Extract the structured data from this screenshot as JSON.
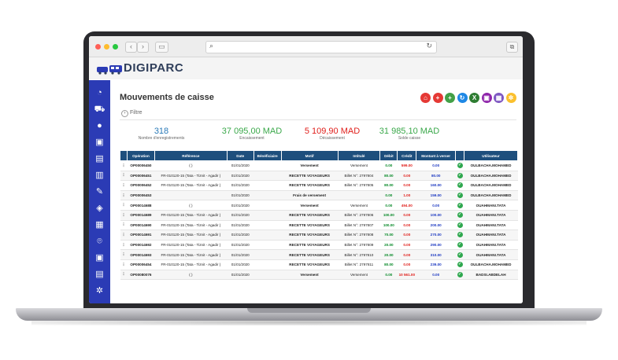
{
  "brand": {
    "name": "DIGIPARC"
  },
  "page": {
    "title": "Mouvements de caisse",
    "filter_label": "Filtre"
  },
  "stats": [
    {
      "value": "318",
      "label": "Nombre d'enregistrements",
      "color": "#2a7ab8"
    },
    {
      "value": "37 095,00 MAD",
      "label": "Encaissement",
      "color": "#3aa84a"
    },
    {
      "value": "5 109,90 MAD",
      "label": "Décaissement",
      "color": "#e0201c"
    },
    {
      "value": "31 985,10 MAD",
      "label": "Solde caisse",
      "color": "#3aa84a"
    }
  ],
  "toolbar": [
    {
      "icon": "pdf-icon",
      "color": "#e53935"
    },
    {
      "icon": "add-red-icon",
      "color": "#e53935"
    },
    {
      "icon": "add-green-icon",
      "color": "#43a047"
    },
    {
      "icon": "refresh-icon",
      "color": "#1e88e5"
    },
    {
      "icon": "excel-icon",
      "color": "#2e7d32"
    },
    {
      "icon": "print-icon",
      "color": "#8e24aa"
    },
    {
      "icon": "grid-icon",
      "color": "#7e57c2"
    },
    {
      "icon": "settings-icon",
      "color": "#fbc02d"
    }
  ],
  "table": {
    "columns": [
      "",
      "Opération",
      "Référence",
      "Date",
      "Bénéficiaire",
      "Motif",
      "Intitulé",
      "Débit",
      "Crédit",
      "Montant à verser",
      "",
      "Utilisateur"
    ],
    "rows": [
      [
        "OP00006450",
        "( )",
        "01/01/2020",
        "",
        "Versement",
        "Versement",
        "0.00",
        "599.00",
        "0.00",
        "OULBACHA.MOHAMED"
      ],
      [
        "OP00006451",
        "FR-010120-15 (Tata - Tiznit - Agadir )",
        "01/01/2020",
        "",
        "RECETTE VOYAGEURS",
        "Billet N°: 2797804",
        "80.00",
        "0.00",
        "80.00",
        "OULBACHA.MOHAMED"
      ],
      [
        "OP00006452",
        "FR-010120-15 (Tata - Tiznit - Agadir )",
        "01/01/2020",
        "",
        "RECETTE VOYAGEURS",
        "Billet N°: 2797805",
        "80.00",
        "0.00",
        "160.00",
        "OULBACHA.MOHAMED"
      ],
      [
        "OP00006453",
        "",
        "01/01/2020",
        "",
        "Frais de versement",
        "",
        "0.00",
        "1.00",
        "159.00",
        "OULBACHA.MOHAMED"
      ],
      [
        "OP00014688",
        "( )",
        "01/01/2020",
        "",
        "Versement",
        "Versement",
        "0.00",
        "494.00",
        "0.00",
        "OUAHMANI.TATA"
      ],
      [
        "OP00014689",
        "FR-010120-15 (Tata - Tiznit - Agadir )",
        "01/01/2020",
        "",
        "RECETTE VOYAGEURS",
        "Billet N°: 2797806",
        "100.00",
        "0.00",
        "100.00",
        "OUAHMANI.TATA"
      ],
      [
        "OP00014690",
        "FR-010120-15 (Tata - Tiznit - Agadir )",
        "01/01/2020",
        "",
        "RECETTE VOYAGEURS",
        "Billet N°: 2797807",
        "100.00",
        "0.00",
        "200.00",
        "OUAHMANI.TATA"
      ],
      [
        "OP00014691",
        "FR-010120-15 (Tata - Tiznit - Agadir )",
        "01/01/2020",
        "",
        "RECETTE VOYAGEURS",
        "Billet N°: 2797808",
        "70.00",
        "0.00",
        "270.00",
        "OUAHMANI.TATA"
      ],
      [
        "OP00014692",
        "FR-010120-15 (Tata - Tiznit - Agadir )",
        "01/01/2020",
        "",
        "RECETTE VOYAGEURS",
        "Billet N°: 2797809",
        "20.00",
        "0.00",
        "290.00",
        "OUAHMANI.TATA"
      ],
      [
        "OP00014693",
        "FR-010120-15 (Tata - Tiznit - Agadir )",
        "01/01/2020",
        "",
        "RECETTE VOYAGEURS",
        "Billet N°: 2797810",
        "20.00",
        "0.00",
        "310.00",
        "OUAHMANI.TATA"
      ],
      [
        "OP00006454",
        "FR-010120-15 (Tata - Tiznit - Agadir )",
        "01/01/2020",
        "",
        "RECETTE VOYAGEURS",
        "Billet N°: 2797811",
        "80.00",
        "0.00",
        "239.00",
        "OULBACHA.MOHAMED"
      ],
      [
        "OP00080076",
        "( )",
        "01/01/2020",
        "",
        "Versement",
        "Versement",
        "0.00",
        "10 561.00",
        "0.00",
        "BADSI.ABDELAH"
      ]
    ]
  },
  "sidebar": [
    {
      "icon": "dashboard-icon"
    },
    {
      "icon": "car-icon"
    },
    {
      "icon": "user-icon"
    },
    {
      "icon": "bus-icon"
    },
    {
      "icon": "document-icon"
    },
    {
      "icon": "fuel-icon"
    },
    {
      "icon": "wrench-icon"
    },
    {
      "icon": "layers-icon"
    },
    {
      "icon": "building-icon"
    },
    {
      "icon": "location-icon"
    },
    {
      "icon": "bus-front-icon"
    },
    {
      "icon": "report-icon"
    },
    {
      "icon": "gear-icon"
    }
  ]
}
